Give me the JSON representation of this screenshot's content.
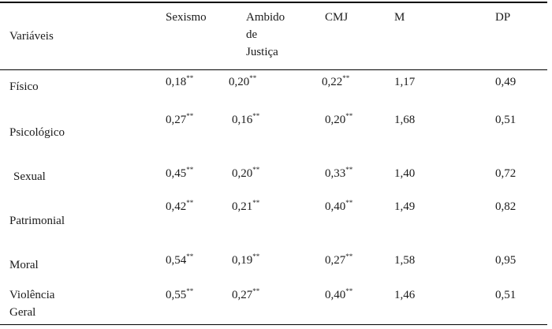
{
  "table": {
    "header": {
      "variables": "Variáveis",
      "sexismo": "Sexismo",
      "ambido": [
        "Ambido",
        "de",
        "Justiça"
      ],
      "cmj": "CMJ",
      "m": "M",
      "dp": "DP"
    },
    "significance_mark": "**",
    "rows": [
      {
        "label": [
          "Físico"
        ],
        "sexismo": "0,18",
        "ambido": "0,20",
        "cmj": "0,22",
        "m": "1,17",
        "dp": "0,49"
      },
      {
        "label": [
          "Psicológico"
        ],
        "sexismo": "0,27",
        "ambido": "0,16",
        "cmj": "0,20",
        "m": "1,68",
        "dp": "0,51"
      },
      {
        "label": [
          "Sexual"
        ],
        "sexismo": "0,45",
        "ambido": "0,20",
        "cmj": "0,33",
        "m": "1,40",
        "dp": "0,72"
      },
      {
        "label": [
          "Patrimonial"
        ],
        "sexismo": "0,42",
        "ambido": "0,21",
        "cmj": "0,40",
        "m": "1,49",
        "dp": "0,82"
      },
      {
        "label": [
          "Moral"
        ],
        "sexismo": "0,54",
        "ambido": "0,19",
        "cmj": "0,27",
        "m": "1,58",
        "dp": "0,95"
      },
      {
        "label": [
          "Violência",
          "Geral"
        ],
        "sexismo": "0,55",
        "ambido": "0,27",
        "cmj": "0,40",
        "m": "1,46",
        "dp": "0,51"
      }
    ]
  }
}
